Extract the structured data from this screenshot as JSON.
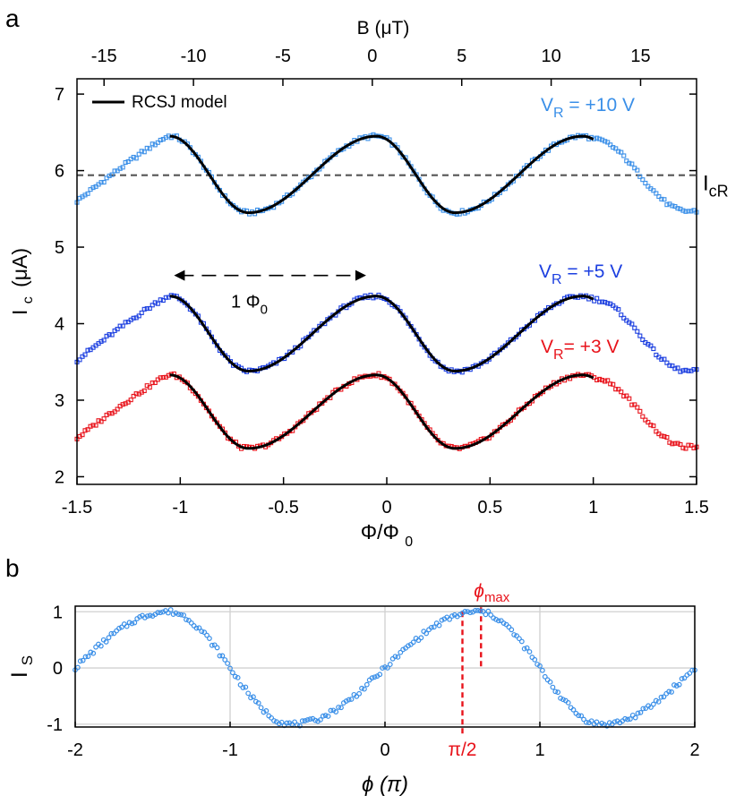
{
  "colors": {
    "v10": "#3a8fe8",
    "v5": "#1c3fe0",
    "v3": "#e8131b",
    "model": "#000000",
    "refline": "#555555",
    "annot": "#e8131b",
    "grid": "#d0d0d0"
  },
  "chart_data": [
    {
      "panel_label": "a",
      "type": "scatter",
      "xlabel": "Φ/Φ",
      "xlabel_sub": "0",
      "ylabel_main": "I",
      "ylabel_sub": "c",
      "ylabel_unit": "(μA)",
      "top_axis_label": "B (μT)",
      "xlim": [
        -1.5,
        1.5
      ],
      "ylim": [
        1.9,
        7.2
      ],
      "xticks": [
        -1.5,
        -1,
        -0.5,
        0,
        0.5,
        1,
        1.5
      ],
      "xtick_labels": [
        "-1.5",
        "-1",
        "-0.5",
        "0",
        "0.5",
        "1",
        "1.5"
      ],
      "yticks": [
        2,
        3,
        4,
        5,
        6,
        7
      ],
      "ytick_labels": [
        "2",
        "3",
        "4",
        "5",
        "6",
        "7"
      ],
      "top_ticks_flux": [
        -1.369,
        -0.936,
        -0.503,
        -0.07,
        0.363,
        0.796,
        1.229
      ],
      "top_tick_labels": [
        "-15",
        "-10",
        "-5",
        "0",
        "5",
        "10",
        "15"
      ],
      "legend": {
        "label": "RCSJ model",
        "placement": "top-left"
      },
      "series": [
        {
          "name": "V_R = +10 V",
          "label_main": "V",
          "label_sub": "R",
          "label_rest": " = +10 V",
          "color_key": "v10",
          "offset": 5.95,
          "amplitude": 0.5,
          "tail": 5.47
        },
        {
          "name": "V_R = +5 V",
          "label_main": "V",
          "label_sub": "R",
          "label_rest": " = +5 V",
          "color_key": "v5",
          "offset": 3.87,
          "amplitude": 0.49,
          "tail": 3.38
        },
        {
          "name": "V_R = +3 V",
          "label_main": "V",
          "label_sub": "R",
          "label_rest": "= +3 V",
          "color_key": "v3",
          "offset": 2.85,
          "amplitude": 0.48,
          "tail": 2.39
        }
      ],
      "model_range": [
        -1.05,
        1.0
      ],
      "period_flux": 1,
      "maxima_flux": [
        -1.05,
        -0.05,
        0.98
      ],
      "minima_flux": [
        -0.67,
        0.38
      ],
      "reference_line": {
        "value": 5.94,
        "label_main": "I",
        "label_sub": "cR"
      },
      "annotation": {
        "label_main": "1 Φ",
        "label_sub": "0",
        "from": -1.03,
        "to": -0.1,
        "y": 4.63
      }
    },
    {
      "panel_label": "b",
      "type": "scatter",
      "xlabel": "ϕ (π)",
      "ylabel": "I",
      "ylabel_sub": "S",
      "xlim": [
        -2,
        2
      ],
      "ylim": [
        -1.05,
        1.1
      ],
      "xticks": [
        -2,
        -1,
        0,
        1,
        2
      ],
      "xtick_labels": [
        "-2",
        "-1",
        "0",
        "1",
        "2"
      ],
      "yticks": [
        -1,
        0,
        1
      ],
      "ytick_labels": [
        "-1",
        "0",
        "1"
      ],
      "grid": true,
      "color_key": "v10",
      "shape": "skewed sine, maxima near ϕ = -1.4 and 0.6, minima near ϕ = -0.6 and 1.4",
      "markers": [
        {
          "x": 0.5,
          "label": "π/2"
        },
        {
          "x": 0.62,
          "label_main": "ϕ",
          "label_sub": "max"
        }
      ]
    }
  ]
}
